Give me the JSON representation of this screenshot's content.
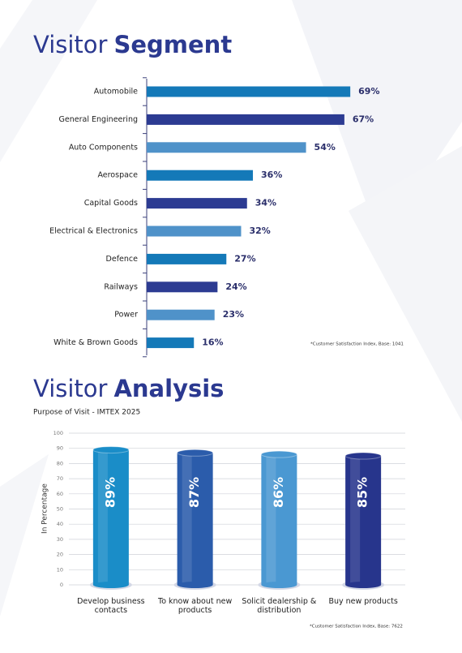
{
  "chart_data": [
    {
      "type": "hbar",
      "title": [
        "Visitor",
        "Segment"
      ],
      "categories": [
        "Automobile",
        "General Engineering",
        "Auto Components",
        "Aerospace",
        "Capital Goods",
        "Electrical & Electronics",
        "Defence",
        "Railways",
        "Power",
        "White & Brown Goods"
      ],
      "values": [
        69,
        67,
        54,
        36,
        34,
        32,
        27,
        24,
        23,
        16
      ],
      "value_labels": [
        "69%",
        "67%",
        "54%",
        "36%",
        "34%",
        "32%",
        "27%",
        "24%",
        "23%",
        "16%"
      ],
      "colors": [
        "#1479b8",
        "#2c3b92",
        "#4f92c9",
        "#1479b8",
        "#2c3b92",
        "#4f92c9",
        "#1479b8",
        "#2c3b92",
        "#4f92c9",
        "#1479b8"
      ],
      "note": "*Customer Satisfaction Index, Base: 1041"
    },
    {
      "type": "cylinder",
      "title": [
        "Visitor",
        "Analysis"
      ],
      "subtitle": "Purpose of Visit - IMTEX 2025",
      "y_label": "In Percentage",
      "categories": [
        "Develop business contacts",
        "To know about new products",
        "Solicit dealership & distribution",
        "Buy new products"
      ],
      "values": [
        89,
        87,
        86,
        85
      ],
      "value_labels": [
        "89%",
        "87%",
        "86%",
        "85%"
      ],
      "colors": [
        "#1a8dc8",
        "#2b5cab",
        "#4a98d2",
        "#27358c"
      ],
      "ylim": [
        0,
        100
      ],
      "yticks": [
        0,
        10,
        20,
        30,
        40,
        50,
        60,
        70,
        80,
        90,
        100
      ],
      "grid": true,
      "note": "*Customer Satisfaction Index, Base: 7622"
    }
  ]
}
